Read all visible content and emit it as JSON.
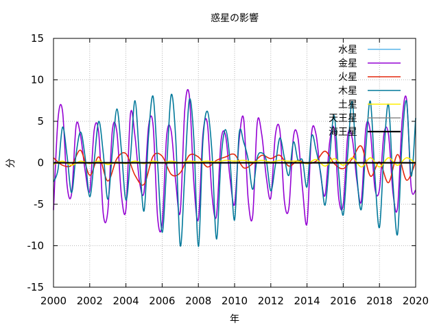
{
  "chart_data": {
    "type": "line",
    "title": "惑星の影響",
    "xlabel": "年",
    "ylabel": "分",
    "xlim": [
      2000,
      2020
    ],
    "ylim": [
      -15,
      15
    ],
    "x_ticks": [
      2000,
      2002,
      2004,
      2006,
      2008,
      2010,
      2012,
      2014,
      2016,
      2018,
      2020
    ],
    "y_ticks": [
      -15,
      -10,
      -5,
      0,
      5,
      10,
      15
    ],
    "grid": true,
    "legend_position": "top-right",
    "series": [
      {
        "name": "水星",
        "color": "#56b4e9",
        "x": [
          2000,
          2020
        ],
        "y": [
          0.0,
          0.0
        ]
      },
      {
        "name": "金星",
        "color": "#9400d3",
        "x": [
          2000.0,
          2000.25,
          2000.5,
          2000.75,
          2001.0,
          2001.25,
          2001.5,
          2001.75,
          2002.0,
          2002.25,
          2002.5,
          2002.75,
          2003.0,
          2003.25,
          2003.5,
          2003.75,
          2004.0,
          2004.25,
          2004.5,
          2004.75,
          2005.0,
          2005.25,
          2005.5,
          2005.75,
          2006.0,
          2006.25,
          2006.5,
          2006.75,
          2007.0,
          2007.25,
          2007.5,
          2007.75,
          2008.0,
          2008.25,
          2008.5,
          2008.75,
          2009.0,
          2009.25,
          2009.5,
          2009.75,
          2010.0,
          2010.25,
          2010.5,
          2010.75,
          2011.0,
          2011.25,
          2011.5,
          2011.75,
          2012.0,
          2012.25,
          2012.5,
          2012.75,
          2013.0,
          2013.25,
          2013.5,
          2013.75,
          2014.0,
          2014.25,
          2014.5,
          2014.75,
          2015.0,
          2015.25,
          2015.5,
          2015.75,
          2016.0,
          2016.25,
          2016.5,
          2016.75,
          2017.0,
          2017.25,
          2017.5,
          2017.75,
          2018.0,
          2018.25,
          2018.5,
          2018.75,
          2019.0,
          2019.25,
          2019.5,
          2019.75,
          2020.0
        ],
        "y": [
          -5.7,
          5.3,
          6.2,
          -2.7,
          -3.7,
          4.5,
          3.2,
          -1.0,
          -3.4,
          4.0,
          3.5,
          -6.2,
          -5.8,
          3.9,
          3.7,
          -3.9,
          -5.6,
          5.9,
          3.2,
          -2.3,
          -3.5,
          4.4,
          4.5,
          -6.6,
          -7.3,
          3.3,
          3.8,
          -2.3,
          -5.9,
          6.4,
          8.1,
          -2.4,
          -6.8,
          3.4,
          4.7,
          -3.8,
          -6.4,
          2.6,
          3.3,
          -1.9,
          -5.0,
          2.7,
          5.3,
          -4.4,
          -6.4,
          4.8,
          3.4,
          -1.7,
          -4.2,
          3.3,
          3.9,
          -4.6,
          -5.4,
          3.1,
          3.0,
          -3.1,
          -7.3,
          3.5,
          3.4,
          -1.4,
          -3.9,
          2.5,
          4.0,
          -4.2,
          -5.0,
          3.3,
          2.9,
          -2.1,
          -4.6,
          4.2,
          3.7,
          -3.1,
          -3.2,
          3.5,
          3.4,
          -3.7,
          -5.4,
          5.0,
          7.6,
          -2.9,
          -3.3
        ]
      },
      {
        "name": "火星",
        "color": "#e3270c",
        "x": [
          2000.0,
          2000.5,
          2001.0,
          2001.5,
          2002.0,
          2002.5,
          2003.0,
          2003.5,
          2004.0,
          2004.5,
          2005.0,
          2005.5,
          2006.0,
          2006.5,
          2007.0,
          2007.5,
          2008.0,
          2008.5,
          2009.0,
          2009.5,
          2010.0,
          2010.5,
          2011.0,
          2011.5,
          2012.0,
          2012.5,
          2013.0,
          2013.5,
          2014.0,
          2014.5,
          2015.0,
          2015.5,
          2016.0,
          2016.5,
          2017.0,
          2017.5,
          2018.0,
          2018.5,
          2019.0,
          2019.5,
          2020.0
        ],
        "y": [
          0.6,
          -0.3,
          -0.3,
          1.5,
          -1.5,
          0.7,
          -2.2,
          0.5,
          1.1,
          -1.5,
          -2.6,
          0.8,
          0.8,
          -1.4,
          -1.2,
          0.9,
          0.7,
          -0.5,
          0.3,
          0.7,
          1.0,
          -0.6,
          -0.1,
          0.9,
          0.5,
          0.9,
          -0.4,
          0.3,
          -0.1,
          0.2,
          1.4,
          -0.1,
          -0.7,
          0.5,
          2.0,
          -1.6,
          0.1,
          -2.4,
          1.0,
          -2.1,
          0.1
        ]
      },
      {
        "name": "木星",
        "color": "#00789a",
        "x": [
          2000.0,
          2000.25,
          2000.5,
          2000.75,
          2001.0,
          2001.25,
          2001.5,
          2001.75,
          2002.0,
          2002.25,
          2002.5,
          2002.75,
          2003.0,
          2003.25,
          2003.5,
          2003.75,
          2004.0,
          2004.25,
          2004.5,
          2004.75,
          2005.0,
          2005.25,
          2005.5,
          2005.75,
          2006.0,
          2006.25,
          2006.5,
          2006.75,
          2007.0,
          2007.25,
          2007.5,
          2007.75,
          2008.0,
          2008.25,
          2008.5,
          2008.75,
          2009.0,
          2009.25,
          2009.5,
          2009.75,
          2010.0,
          2010.25,
          2010.5,
          2010.75,
          2011.0,
          2011.25,
          2011.5,
          2011.75,
          2012.0,
          2012.25,
          2012.5,
          2012.75,
          2013.0,
          2013.25,
          2013.5,
          2013.75,
          2014.0,
          2014.25,
          2014.5,
          2014.75,
          2015.0,
          2015.25,
          2015.5,
          2015.75,
          2016.0,
          2016.25,
          2016.5,
          2016.75,
          2017.0,
          2017.25,
          2017.5,
          2017.75,
          2018.0,
          2018.25,
          2018.5,
          2018.75,
          2019.0,
          2019.25,
          2019.5,
          2019.75,
          2020.0
        ],
        "y": [
          -2.3,
          -0.8,
          4.3,
          0.8,
          -3.6,
          1.1,
          3.7,
          0.6,
          -4.1,
          0.3,
          5.0,
          1.1,
          -4.4,
          1.3,
          6.5,
          1.5,
          -4.5,
          0.6,
          7.5,
          0.4,
          -5.8,
          3.3,
          8.0,
          -0.1,
          -8.4,
          -0.4,
          8.2,
          2.9,
          -10.0,
          -1.3,
          7.6,
          2.9,
          -10.1,
          2.6,
          6.2,
          1.3,
          -9.2,
          0.4,
          4.0,
          0.2,
          -6.9,
          3.5,
          2.5,
          0.4,
          -3.2,
          0.6,
          1.2,
          0.3,
          -3.4,
          -0.3,
          3.0,
          0.6,
          -1.5,
          2.5,
          0.3,
          0.3,
          -2.9,
          3.2,
          1.5,
          -1.2,
          -5.1,
          0.6,
          5.7,
          -1.3,
          -6.3,
          1.1,
          7.4,
          -1.4,
          -5.6,
          1.9,
          7.4,
          -1.6,
          -7.8,
          1.4,
          7.0,
          -2.6,
          -8.6,
          2.6,
          7.4,
          -1.6,
          5.4
        ]
      },
      {
        "name": "土星",
        "color": "#ffee00",
        "x": [
          2000.0,
          2000.5,
          2001.0,
          2001.5,
          2002.0,
          2002.5,
          2003.0,
          2003.5,
          2004.0,
          2004.5,
          2005.0,
          2005.5,
          2006.0,
          2006.5,
          2007.0,
          2007.5,
          2008.0,
          2008.5,
          2009.0,
          2009.5,
          2010.0,
          2010.5,
          2011.0,
          2011.5,
          2012.0,
          2012.5,
          2013.0,
          2013.5,
          2014.0,
          2014.5,
          2015.0,
          2015.5,
          2016.0,
          2016.5,
          2017.0,
          2017.5,
          2018.0,
          2018.5,
          2019.0,
          2019.5,
          2020.0
        ],
        "y": [
          -0.2,
          0.2,
          -0.3,
          0.2,
          -0.1,
          0.2,
          -0.2,
          0.1,
          -0.1,
          0.2,
          -0.1,
          0.2,
          0.0,
          0.2,
          0.0,
          0.2,
          0.1,
          0.2,
          0.1,
          0.3,
          0.2,
          0.3,
          0.1,
          0.3,
          0.1,
          0.3,
          0.2,
          0.2,
          -0.1,
          0.4,
          -0.4,
          0.5,
          -0.3,
          0.6,
          -0.5,
          0.6,
          -0.5,
          0.6,
          -0.3,
          0.6,
          -0.1
        ]
      },
      {
        "name": "天王星",
        "color": "#888888",
        "x": [
          2000,
          2020
        ],
        "y": [
          0.0,
          0.0
        ]
      },
      {
        "name": "海王星",
        "color": "#000000",
        "x": [
          2000,
          2020
        ],
        "y": [
          0.0,
          0.0
        ]
      }
    ]
  }
}
